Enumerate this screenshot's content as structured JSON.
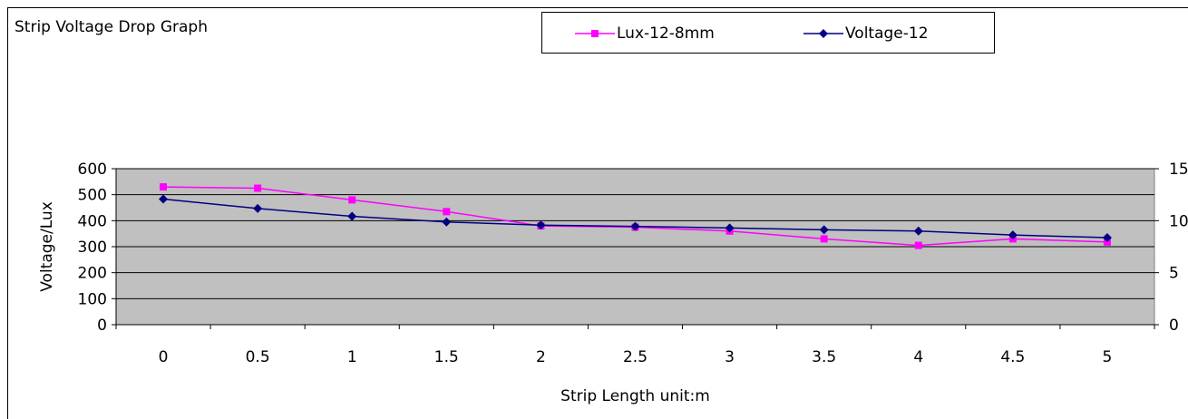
{
  "chart_data": {
    "type": "line",
    "title": "Strip Voltage Drop Graph",
    "xlabel": "Strip Length unit:m",
    "ylabel": "Voltage/Lux",
    "categories": [
      "0",
      "0.5",
      "1",
      "1.5",
      "2",
      "2.5",
      "3",
      "3.5",
      "4",
      "4.5",
      "5"
    ],
    "ylim": [
      0,
      600
    ],
    "yticks": [
      "0",
      "100",
      "200",
      "300",
      "400",
      "500",
      "600"
    ],
    "y2lim": [
      0,
      15
    ],
    "y2ticks": [
      "0",
      "5",
      "10",
      "15"
    ],
    "legend_position": "top-center",
    "grid": true,
    "series": [
      {
        "name": "Lux-12-8mm",
        "color": "#ff00ff",
        "marker": "square",
        "values": [
          530,
          525,
          480,
          435,
          380,
          375,
          360,
          330,
          305,
          330,
          318
        ]
      },
      {
        "name": "Voltage-12",
        "color": "#000080",
        "marker": "diamond",
        "values": [
          483,
          447,
          417,
          395,
          383,
          378,
          372,
          365,
          360,
          345,
          335
        ]
      }
    ]
  }
}
